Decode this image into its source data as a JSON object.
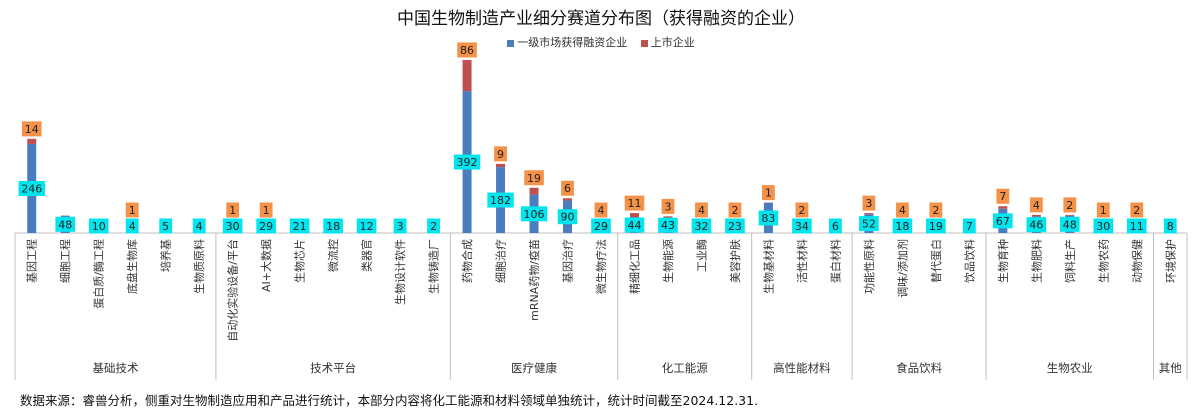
{
  "chart_data": {
    "type": "bar",
    "stacked": true,
    "title": "中国生物制造产业细分赛道分布图（获得融资的企业）",
    "legend_position": "top",
    "grid": false,
    "ylim": [
      0,
      500
    ],
    "series": [
      {
        "name": "一级市场获得融资企业",
        "color": "#4a7cc0",
        "values": [
          246,
          48,
          10,
          4,
          5,
          4,
          30,
          29,
          21,
          18,
          12,
          3,
          2,
          392,
          182,
          106,
          90,
          29,
          44,
          43,
          32,
          23,
          83,
          34,
          6,
          52,
          18,
          19,
          7,
          67,
          46,
          48,
          30,
          11,
          8
        ]
      },
      {
        "name": "上市企业",
        "color": "#c0504d",
        "values": [
          14,
          0,
          0,
          1,
          0,
          0,
          1,
          1,
          0,
          0,
          0,
          0,
          0,
          86,
          9,
          19,
          6,
          4,
          11,
          3,
          4,
          2,
          1,
          2,
          0,
          3,
          4,
          2,
          0,
          7,
          4,
          2,
          1,
          2,
          0
        ]
      }
    ],
    "categories": [
      "基因工程",
      "细胞工程",
      "蛋白质/酶工程",
      "底盘生物库",
      "培养基",
      "生物质原料",
      "自动化实验设备/平台",
      "AI+大数据",
      "生物芯片",
      "微流控",
      "类器官",
      "生物设计软件",
      "生物铸造厂",
      "药物合成",
      "细胞治疗",
      "mRNA药物/疫苗",
      "基因治疗",
      "微生物疗法",
      "精细化工品",
      "生物能源",
      "工业酶",
      "美容护肤",
      "生物基材料",
      "活性材料",
      "蛋白材料",
      "功能性原料",
      "调味/添加剂",
      "替代蛋白",
      "饮品饮料",
      "生物育种",
      "生物肥料",
      "饲料生产",
      "生物农药",
      "动物保健",
      "环境保护"
    ],
    "groups": [
      {
        "label": "基础技术",
        "count": 6
      },
      {
        "label": "技术平台",
        "count": 7
      },
      {
        "label": "医疗健康",
        "count": 5
      },
      {
        "label": "化工能源",
        "count": 4
      },
      {
        "label": "高性能材料",
        "count": 3
      },
      {
        "label": "食品饮料",
        "count": 4
      },
      {
        "label": "生物农业",
        "count": 5
      },
      {
        "label": "其他",
        "count": 1
      }
    ],
    "primary_label_color": "#00e5ee",
    "listed_label_color": "#f4924a"
  },
  "source_note": "数据来源：睿兽分析，侧重对生物制造应用和产品进行统计，本部分内容将化工能源和材料领域单独统计，统计时间截至2024.12.31."
}
